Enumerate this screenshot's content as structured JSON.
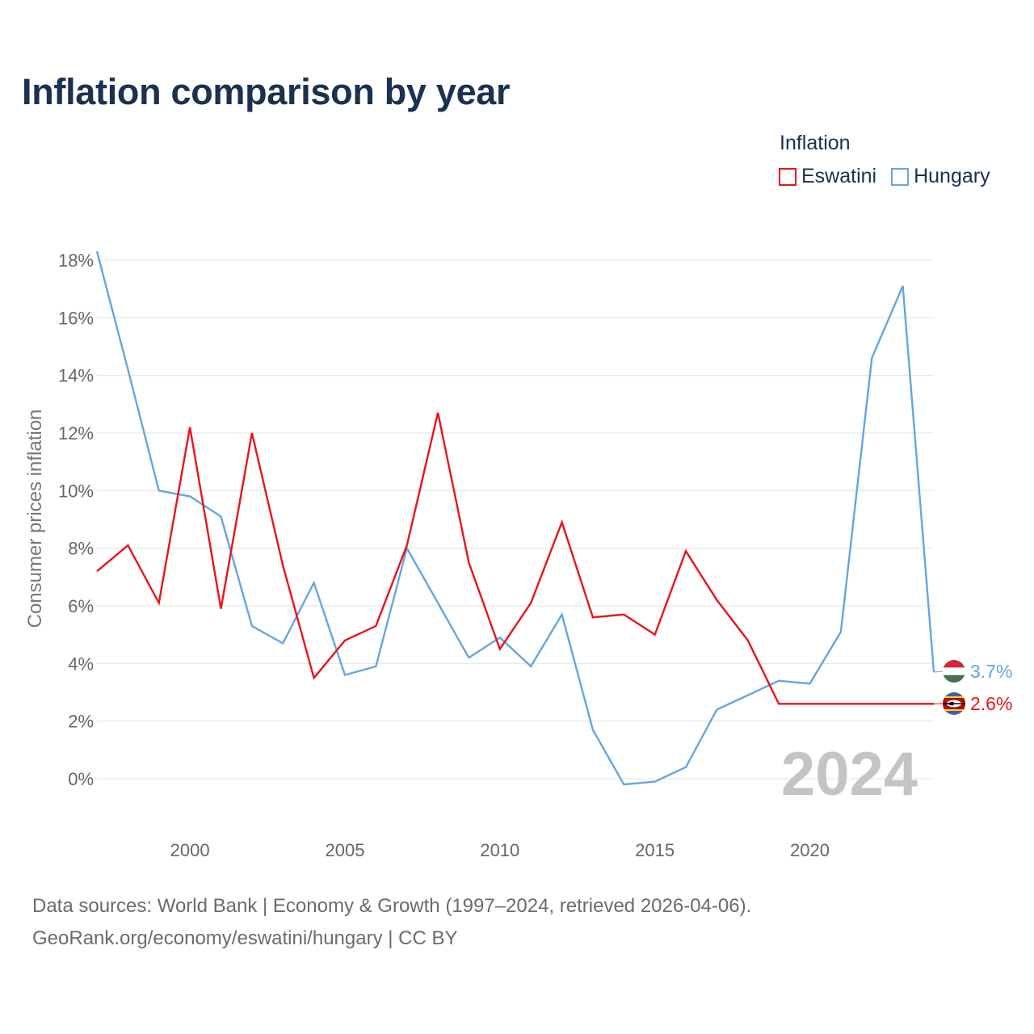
{
  "title": "Inflation comparison by year",
  "legend": {
    "title": "Inflation",
    "items": [
      {
        "label": "Eswatini",
        "color": "#e8141b"
      },
      {
        "label": "Hungary",
        "color": "#64a6e2"
      }
    ]
  },
  "chart_data": {
    "type": "line",
    "title": "Inflation comparison by year",
    "xlabel": "",
    "ylabel": "Consumer prices inflation",
    "xlim": [
      1997,
      2024
    ],
    "ylim": [
      -1.5,
      18.3
    ],
    "x_ticks": [
      2000,
      2005,
      2010,
      2015,
      2020
    ],
    "y_ticks": [
      0,
      2,
      4,
      6,
      8,
      10,
      12,
      14,
      16,
      18
    ],
    "y_tick_labels": [
      "0%",
      "2%",
      "4%",
      "6%",
      "8%",
      "10%",
      "12%",
      "14%",
      "16%",
      "18%"
    ],
    "x_tick_labels": [
      "2000",
      "2005",
      "2010",
      "2015",
      "2020"
    ],
    "grid": true,
    "watermark_year": "2024",
    "x": [
      1997,
      1998,
      1999,
      2000,
      2001,
      2002,
      2003,
      2004,
      2005,
      2006,
      2007,
      2008,
      2009,
      2010,
      2011,
      2012,
      2013,
      2014,
      2015,
      2016,
      2017,
      2018,
      2019,
      2020,
      2021,
      2022,
      2023,
      2024
    ],
    "series": [
      {
        "name": "Hungary",
        "color": "#64a6e2",
        "values": [
          18.3,
          14.2,
          10.0,
          9.8,
          9.1,
          5.3,
          4.7,
          6.8,
          3.6,
          3.9,
          8.0,
          6.1,
          4.2,
          4.9,
          3.9,
          5.7,
          1.7,
          -0.2,
          -0.1,
          0.4,
          2.4,
          2.9,
          3.4,
          3.3,
          5.1,
          14.6,
          17.1,
          3.7
        ],
        "end_label": "3.7%"
      },
      {
        "name": "Eswatini",
        "color": "#e8141b",
        "values": [
          7.2,
          8.1,
          6.1,
          12.2,
          5.9,
          12.0,
          7.4,
          3.5,
          4.8,
          5.3,
          8.1,
          12.7,
          7.5,
          4.5,
          6.1,
          8.9,
          5.6,
          5.7,
          5.0,
          7.9,
          6.2,
          4.8,
          2.6,
          2.6,
          2.6,
          2.6,
          2.6,
          2.6
        ],
        "end_label": "2.6%"
      }
    ]
  },
  "footer": {
    "line1": "Data sources: World Bank | Economy & Growth (1997–2024, retrieved 2026-04-06).",
    "line2": "GeoRank.org/economy/eswatini/hungary | CC BY"
  }
}
